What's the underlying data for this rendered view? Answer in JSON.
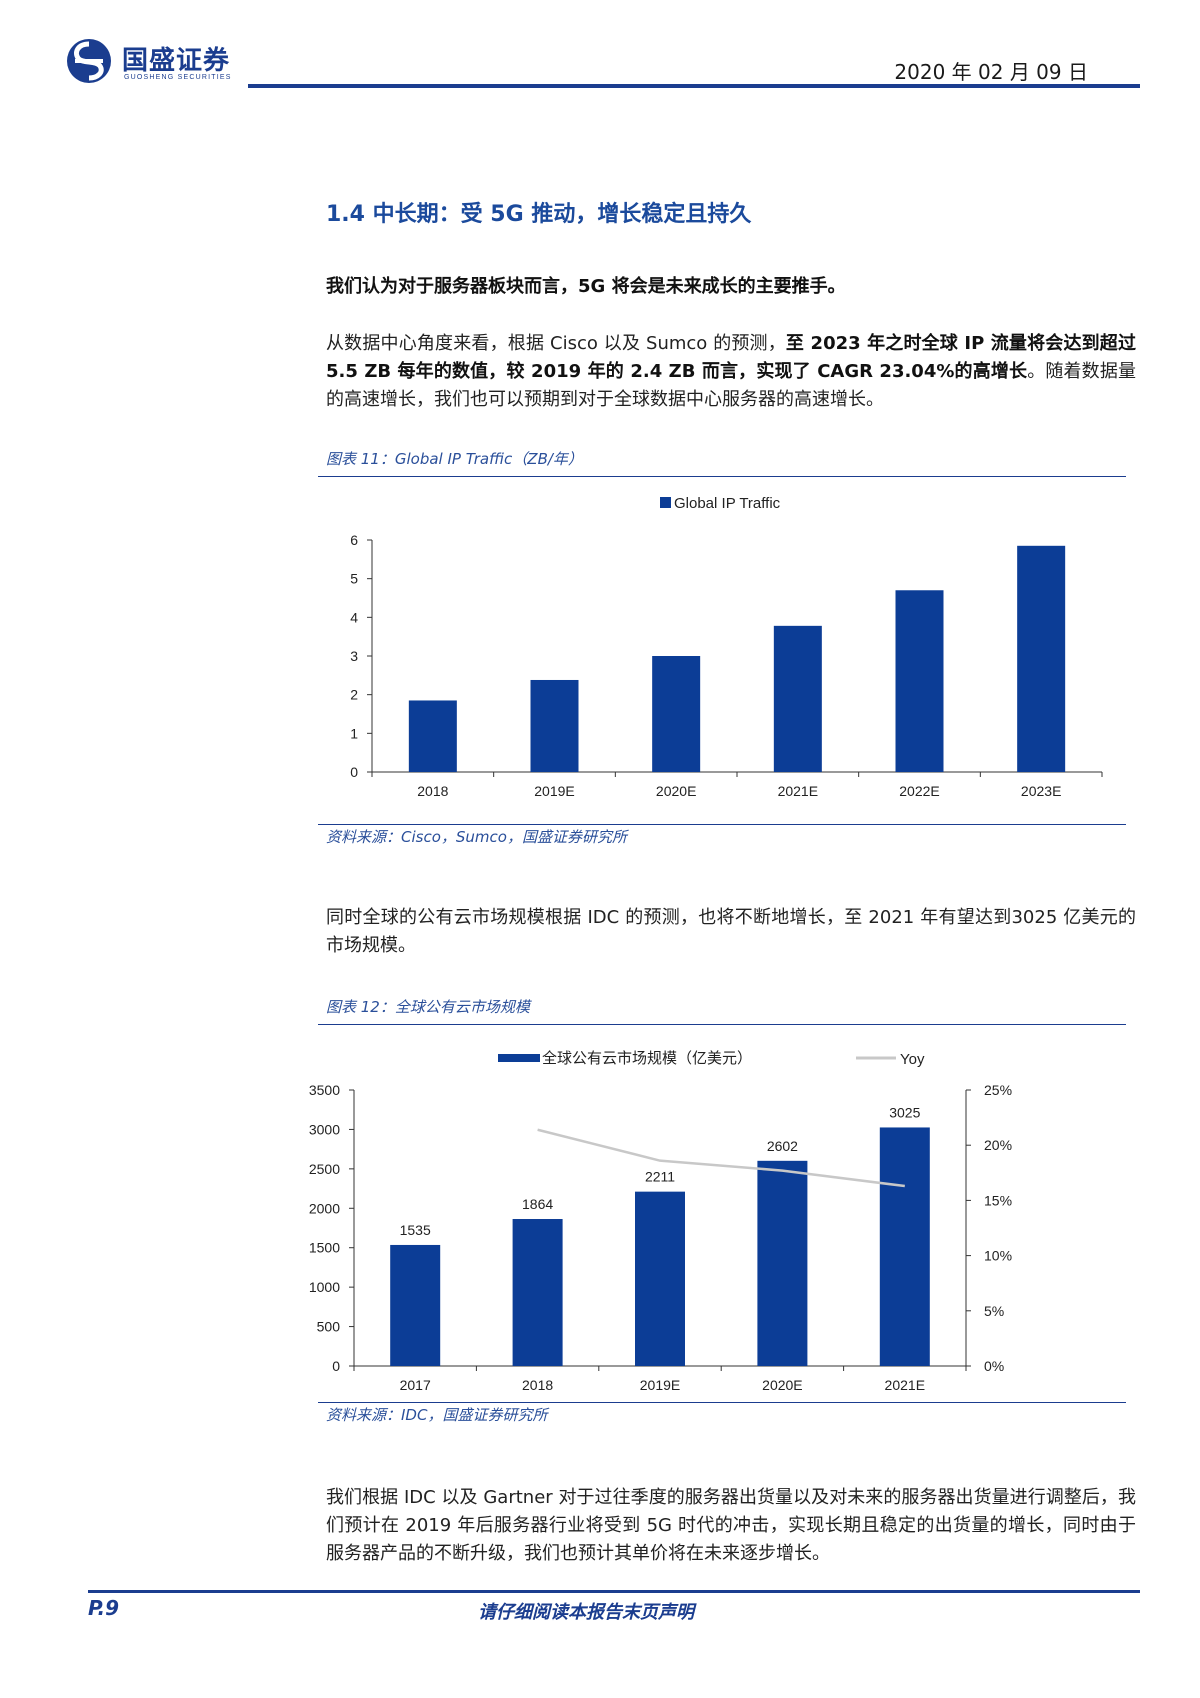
{
  "header": {
    "logo_cn": "国盛证券",
    "logo_en": "GUOSHENG SECURITIES",
    "date": "2020 年 02 月 09 日"
  },
  "section": {
    "heading": "1.4 中长期：受 5G 推动，增长稳定且持久",
    "thesis": "我们认为对于服务器板块而言，5G 将会是未来成长的主要推手。",
    "p1_a": "从数据中心角度来看，根据 Cisco 以及 Sumco 的预测，",
    "p1_b": "至 2023 年之时全球 IP 流量将会达到超过 5.5 ZB 每年的数值，较 2019 年的 2.4 ZB 而言，实现了 CAGR 23.04%的高增长",
    "p1_c": "。随着数据量的高速增长，我们也可以预期到对于全球数据中心服务器的高速增长。",
    "p2": "同时全球的公有云市场规模根据 IDC 的预测，也将不断地增长，至 2021 年有望达到3025 亿美元的市场规模。",
    "p3": "我们根据 IDC 以及 Gartner 对于过往季度的服务器出货量以及对未来的服务器出货量进行调整后，我们预计在 2019 年后服务器行业将受到 5G 时代的冲击，实现长期且稳定的出货量的增长，同时由于服务器产品的不断升级，我们也预计其单价将在未来逐步增长。"
  },
  "figure11": {
    "title": "图表 11：Global IP Traffic（ZB/年）",
    "source": "资料来源：Cisco，Sumco，国盛证券研究所"
  },
  "figure12": {
    "title": "图表 12：全球公有云市场规模",
    "source": "资料来源：IDC，国盛证券研究所"
  },
  "chart_data": [
    {
      "type": "bar",
      "categories": [
        "2018",
        "2019E",
        "2020E",
        "2021E",
        "2022E",
        "2023E"
      ],
      "series": [
        {
          "name": "Global IP Traffic",
          "values": [
            1.85,
            2.38,
            3.0,
            3.78,
            4.7,
            5.85
          ]
        }
      ],
      "ylim": [
        0,
        6
      ],
      "yticks": [
        0,
        1,
        2,
        3,
        4,
        5,
        6
      ],
      "legend": "top-center",
      "color": "#0c3d96"
    },
    {
      "type": "bar",
      "categories": [
        "2017",
        "2018",
        "2019E",
        "2020E",
        "2021E"
      ],
      "series": [
        {
          "name": "全球公有云市场规模（亿美元）",
          "values": [
            1535,
            1864,
            2211,
            2602,
            3025
          ],
          "axis": "left"
        },
        {
          "name": "Yoy",
          "type": "line",
          "values": [
            null,
            21.4,
            18.6,
            17.7,
            16.3
          ],
          "axis": "right"
        }
      ],
      "ylim": [
        0,
        3500
      ],
      "yticks": [
        0,
        500,
        1000,
        1500,
        2000,
        2500,
        3000,
        3500
      ],
      "y2lim": [
        0,
        25
      ],
      "y2ticks": [
        "0%",
        "5%",
        "10%",
        "15%",
        "20%",
        "25%"
      ],
      "data_labels": [
        "1535",
        "1864",
        "2211",
        "2602",
        "3025"
      ],
      "legend": "top-center",
      "bar_color": "#0c3d96",
      "line_color": "#c8c8c8"
    }
  ],
  "footer": {
    "page": "P.9",
    "note": "请仔细阅读本报告末页声明"
  }
}
